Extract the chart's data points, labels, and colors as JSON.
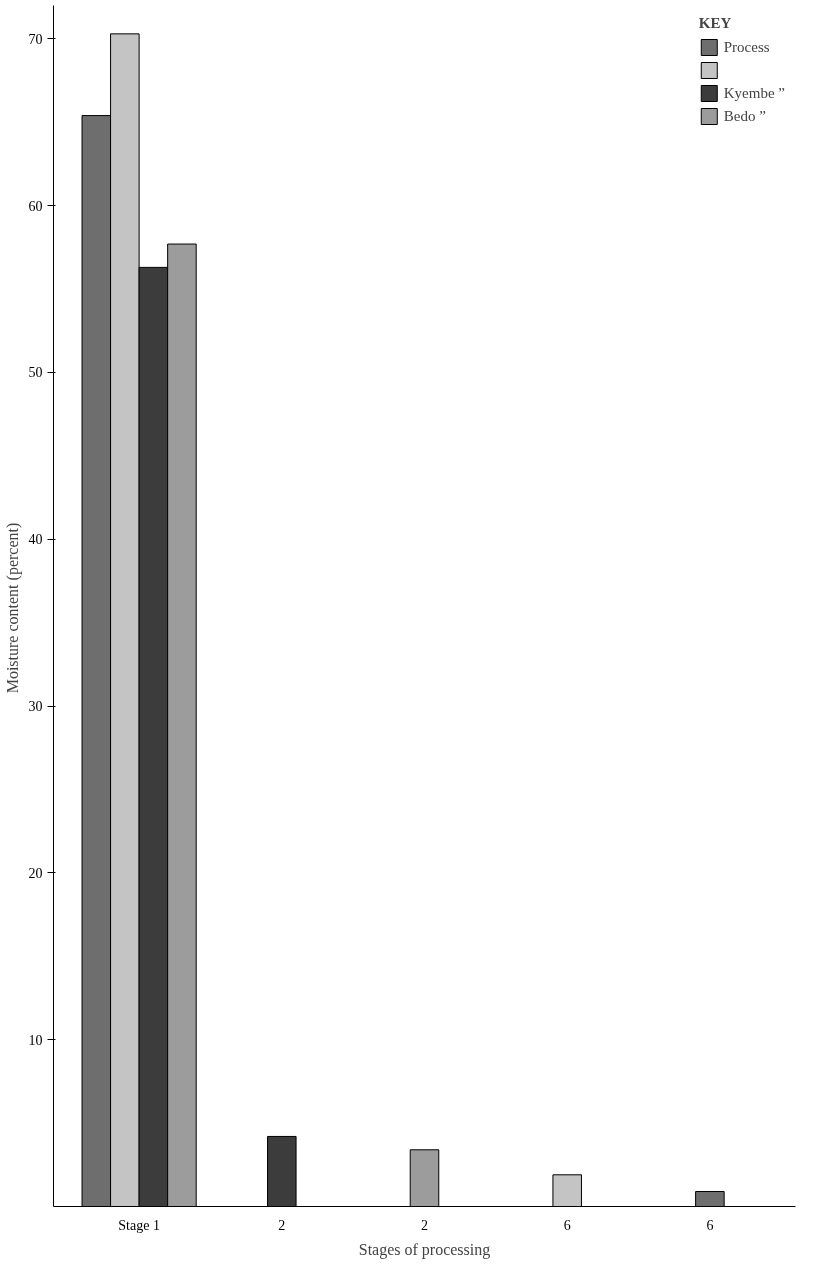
{
  "chart_data": {
    "type": "bar",
    "xlabel": "Stages of processing",
    "ylabel": "Moisture content  (percent)",
    "legend_title": "KEY",
    "legend": "top right",
    "categories": [
      "Stage 1",
      "2",
      "2",
      "6",
      "6"
    ],
    "series": [
      {
        "name": "Process",
        "color": "#6e6e6e",
        "values": [
          65.4,
          null,
          null,
          null,
          0.9
        ]
      },
      {
        "color": "#c4c4c4",
        "values": [
          70.3,
          null,
          null,
          1.9,
          null
        ]
      },
      {
        "name": "Kyembe ”",
        "color": "#3c3c3c",
        "values": [
          56.3,
          4.2,
          null,
          null,
          null
        ]
      },
      {
        "name": "Bedo ”",
        "color": "#9c9c9c",
        "values": [
          57.7,
          null,
          3.4,
          null,
          null
        ]
      }
    ],
    "ylim": [
      0,
      72
    ],
    "yticks": [
      10,
      20,
      30,
      40,
      50,
      60,
      70
    ],
    "grid": false
  }
}
